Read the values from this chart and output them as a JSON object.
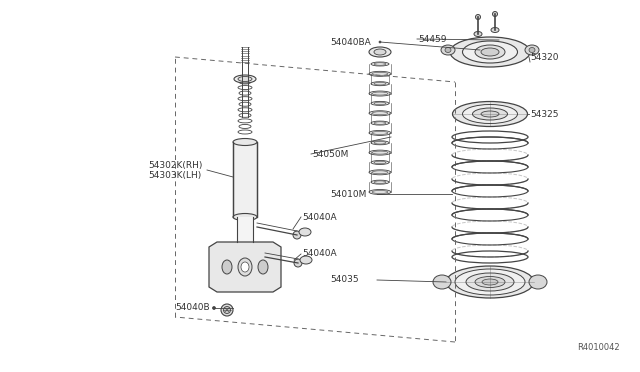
{
  "bg_color": "#ffffff",
  "line_color": "#444444",
  "text_color": "#333333",
  "ref_code": "R4010042",
  "labels": {
    "54302K_RH": "54302K(RH)",
    "54303K_LH": "54303K(LH)",
    "54050M": "54050M",
    "54040A_top": "54040A",
    "54040A_bot": "54040A",
    "54040B": "54040B",
    "54040BA": "54040BA",
    "54459": "54459",
    "54320": "54320",
    "54325": "54325",
    "54010M": "54010M",
    "54035": "54035"
  }
}
